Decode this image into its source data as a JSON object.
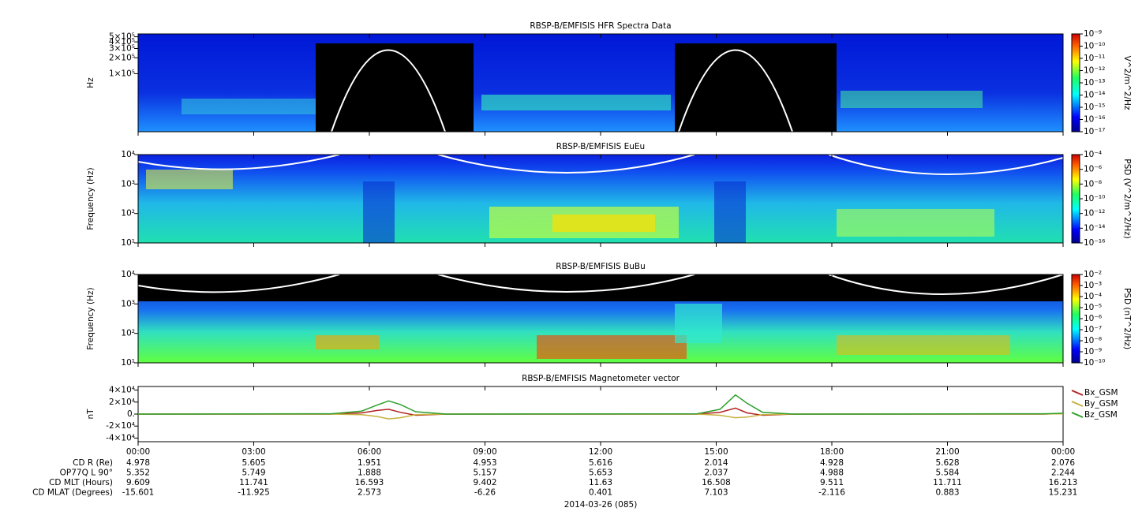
{
  "chart_data": [
    {
      "type": "spectrogram",
      "title": "RBSP-B/EMFISIS  HFR Spectra Data",
      "ylabel": "Hz",
      "ylog": true,
      "ylim": [
        8000,
        566000
      ],
      "yticks": [
        {
          "value": 100000,
          "label": "1×10⁵"
        },
        {
          "value": 200000,
          "label": "2×10⁵"
        },
        {
          "value": 300000,
          "label": "3×10⁵"
        },
        {
          "value": 400000,
          "label": "4×10⁵"
        },
        {
          "value": 500000,
          "label": "5×10⁵"
        }
      ],
      "colorbar": {
        "label": "V^2/m^2/Hz",
        "zlog": true,
        "zlim": [
          1e-17,
          1e-09
        ],
        "zticks": [
          {
            "value": 1e-17,
            "label": "10⁻¹⁷"
          },
          {
            "value": 1e-16,
            "label": "10⁻¹⁶"
          },
          {
            "value": 1e-15,
            "label": "10⁻¹⁵"
          },
          {
            "value": 1e-14,
            "label": "10⁻¹⁴"
          },
          {
            "value": 1e-13,
            "label": "10⁻¹³"
          },
          {
            "value": 1e-12,
            "label": "10⁻¹²"
          },
          {
            "value": 1e-11,
            "label": "10⁻¹¹"
          },
          {
            "value": 1e-10,
            "label": "10⁻¹⁰"
          },
          {
            "value": 1e-09,
            "label": "10⁻⁹"
          }
        ]
      }
    },
    {
      "type": "spectrogram",
      "title": "RBSP-B/EMFISIS  EuEu",
      "ylabel": "Frequency (Hz)",
      "ylog": true,
      "ylim": [
        10,
        10000
      ],
      "yticks": [
        {
          "value": 10,
          "label": "10¹"
        },
        {
          "value": 100,
          "label": "10²"
        },
        {
          "value": 1000,
          "label": "10³"
        },
        {
          "value": 10000,
          "label": "10⁴"
        }
      ],
      "colorbar": {
        "label": "PSD (V^2/m^2/Hz)",
        "zlog": true,
        "zlim": [
          1e-16,
          0.0001
        ],
        "zticks": [
          {
            "value": 1e-16,
            "label": "10⁻¹⁶"
          },
          {
            "value": 1e-14,
            "label": "10⁻¹⁴"
          },
          {
            "value": 1e-12,
            "label": "10⁻¹²"
          },
          {
            "value": 1e-10,
            "label": "10⁻¹⁰"
          },
          {
            "value": 1e-08,
            "label": "10⁻⁸"
          },
          {
            "value": 1e-06,
            "label": "10⁻⁶"
          },
          {
            "value": 0.0001,
            "label": "10⁻⁴"
          }
        ]
      }
    },
    {
      "type": "spectrogram",
      "title": "RBSP-B/EMFISIS  BuBu",
      "ylabel": "Frequency (Hz)",
      "ylog": true,
      "ylim": [
        10,
        10000
      ],
      "yticks": [
        {
          "value": 10,
          "label": "10¹"
        },
        {
          "value": 100,
          "label": "10²"
        },
        {
          "value": 1000,
          "label": "10³"
        },
        {
          "value": 10000,
          "label": "10⁴"
        }
      ],
      "colorbar": {
        "label": "PSD (nT^2/Hz)",
        "zlog": true,
        "zlim": [
          1e-10,
          0.01
        ],
        "zticks": [
          {
            "value": 1e-10,
            "label": "10⁻¹⁰"
          },
          {
            "value": 1e-09,
            "label": "10⁻⁹"
          },
          {
            "value": 1e-08,
            "label": "10⁻⁸"
          },
          {
            "value": 1e-07,
            "label": "10⁻⁷"
          },
          {
            "value": 1e-06,
            "label": "10⁻⁶"
          },
          {
            "value": 1e-05,
            "label": "10⁻⁵"
          },
          {
            "value": 0.0001,
            "label": "10⁻⁴"
          },
          {
            "value": 0.001,
            "label": "10⁻³"
          },
          {
            "value": 0.01,
            "label": "10⁻²"
          }
        ]
      }
    },
    {
      "type": "line",
      "title": "RBSP-B/EMFISIS  Magnetometer vector",
      "ylabel": "nT",
      "ylim": [
        -46000,
        46000
      ],
      "yticks": [
        {
          "value": -40000,
          "label": "-4×10⁴"
        },
        {
          "value": -20000,
          "label": "-2×10⁴"
        },
        {
          "value": 0,
          "label": "0."
        },
        {
          "value": 20000,
          "label": "2×10⁴"
        },
        {
          "value": 40000,
          "label": "4×10⁴"
        }
      ],
      "x": [
        0,
        5,
        5.8,
        6.2,
        6.5,
        6.8,
        7.2,
        8,
        14.5,
        15.1,
        15.5,
        15.8,
        16.2,
        17,
        23.5,
        24
      ],
      "series": [
        {
          "name": "Bx_GSM",
          "color": "#b22222",
          "values": [
            0,
            0,
            2000,
            6000,
            8000,
            3000,
            -2000,
            0,
            0,
            3000,
            10000,
            2000,
            -2000,
            0,
            0,
            1000
          ]
        },
        {
          "name": "By_GSM",
          "color": "#c8b040",
          "values": [
            0,
            0,
            -1000,
            -4000,
            -8000,
            -6000,
            -1000,
            0,
            0,
            -2000,
            -6000,
            -5000,
            -1000,
            0,
            0,
            500
          ]
        },
        {
          "name": "Bz_GSM",
          "color": "#2ca02c",
          "values": [
            0,
            500,
            5000,
            15000,
            22000,
            16000,
            4000,
            0,
            500,
            8000,
            32000,
            18000,
            3000,
            0,
            500,
            1500
          ]
        }
      ]
    }
  ],
  "time_axis": {
    "xlim": [
      0,
      24
    ],
    "xticks": [
      {
        "value": 0,
        "label": "00:00"
      },
      {
        "value": 3,
        "label": "03:00"
      },
      {
        "value": 6,
        "label": "06:00"
      },
      {
        "value": 9,
        "label": "09:00"
      },
      {
        "value": 12,
        "label": "12:00"
      },
      {
        "value": 15,
        "label": "15:00"
      },
      {
        "value": 18,
        "label": "18:00"
      },
      {
        "value": 21,
        "label": "21:00"
      },
      {
        "value": 24,
        "label": "00:00"
      }
    ]
  },
  "ephemeris": {
    "rows": [
      {
        "label": "CD R (Re)",
        "values": [
          4.978,
          5.605,
          1.951,
          4.953,
          5.616,
          2.014,
          4.928,
          5.628,
          2.076
        ]
      },
      {
        "label": "OP77Q L 90°",
        "values": [
          5.352,
          5.749,
          1.888,
          5.157,
          5.653,
          2.037,
          4.988,
          5.584,
          2.244
        ]
      },
      {
        "label": "CD MLT (Hours)",
        "values": [
          9.609,
          11.741,
          16.593,
          9.402,
          11.63,
          16.508,
          9.511,
          11.711,
          16.213
        ]
      },
      {
        "label": "CD MLAT (Degrees)",
        "values": [
          -15.601,
          -11.925,
          2.573,
          -6.26,
          0.401,
          7.103,
          -2.116,
          0.883,
          15.231
        ]
      }
    ],
    "date": "2014-03-26 (085)"
  }
}
